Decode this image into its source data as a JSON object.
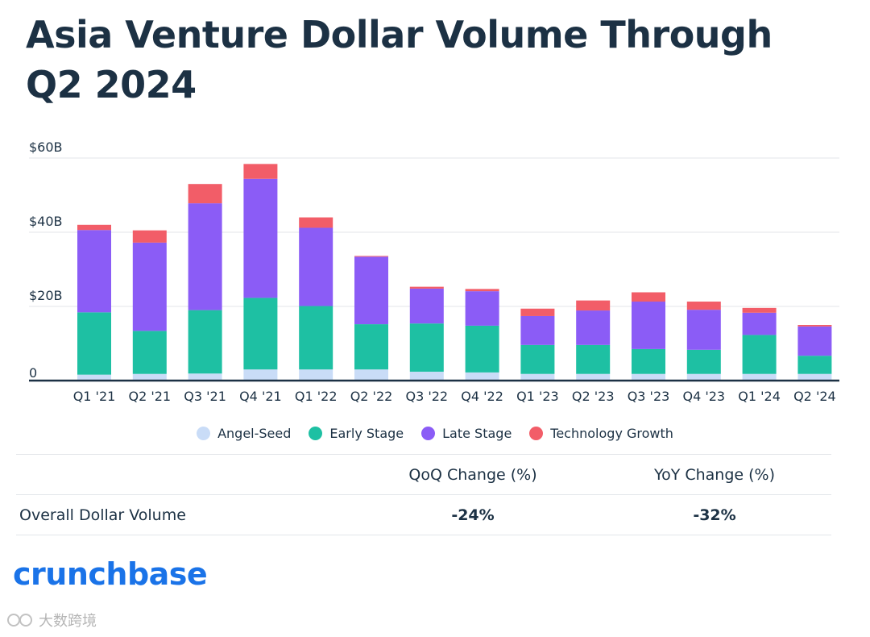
{
  "title": "Asia Venture Dollar Volume Through  Q2 2024",
  "chart_data": {
    "type": "bar",
    "stacked": true,
    "title": "Asia Venture Dollar Volume Through  Q2 2024",
    "categories": [
      "Q1 '21",
      "Q2 '21",
      "Q3 '21",
      "Q4 '21",
      "Q1 '22",
      "Q2 '22",
      "Q3 '22",
      "Q4 '22",
      "Q1 '23",
      "Q2 '23",
      "Q3 '23",
      "Q4 '23",
      "Q1 '24",
      "Q2 '24"
    ],
    "series": [
      {
        "name": "Angel-Seed",
        "color": "#c9dcf7",
        "values": [
          1.6,
          1.8,
          1.9,
          3.0,
          3.0,
          3.0,
          2.4,
          2.2,
          1.8,
          1.8,
          1.8,
          1.8,
          1.8,
          1.8
        ]
      },
      {
        "name": "Early Stage",
        "color": "#1ec0a3",
        "values": [
          16.8,
          11.6,
          17.1,
          19.3,
          17.1,
          12.2,
          13.0,
          12.6,
          7.8,
          7.8,
          6.7,
          6.5,
          10.5,
          4.9
        ]
      },
      {
        "name": "Late Stage",
        "color": "#8b5cf6",
        "values": [
          22.2,
          23.8,
          28.8,
          32.1,
          21.1,
          18.2,
          9.4,
          9.3,
          7.8,
          9.3,
          12.8,
          10.8,
          6.0,
          7.9
        ]
      },
      {
        "name": "Technology Growth",
        "color": "#f25d68",
        "values": [
          1.4,
          3.3,
          5.2,
          4.0,
          2.8,
          0.2,
          0.5,
          0.6,
          2.0,
          2.7,
          2.5,
          2.2,
          1.3,
          0.4
        ]
      }
    ],
    "ylim": [
      0,
      60
    ],
    "yticks": [
      0,
      20,
      40,
      60
    ],
    "ytick_labels": [
      "0",
      "$20B",
      "$40B",
      "$60B"
    ],
    "xlabel": "",
    "ylabel": "",
    "grid": true,
    "legend_position": "bottom-center"
  },
  "summary": {
    "headers": [
      "",
      "QoQ Change (%)",
      "YoY Change (%)"
    ],
    "row_label": "Overall Dollar Volume",
    "qoq": "-24%",
    "yoy": "-32%"
  },
  "brand": "crunchbase",
  "watermark": "大数跨境",
  "colors": {
    "axis": "#1c3144",
    "grid": "#e3e6ea",
    "brand": "#1a73e8"
  }
}
